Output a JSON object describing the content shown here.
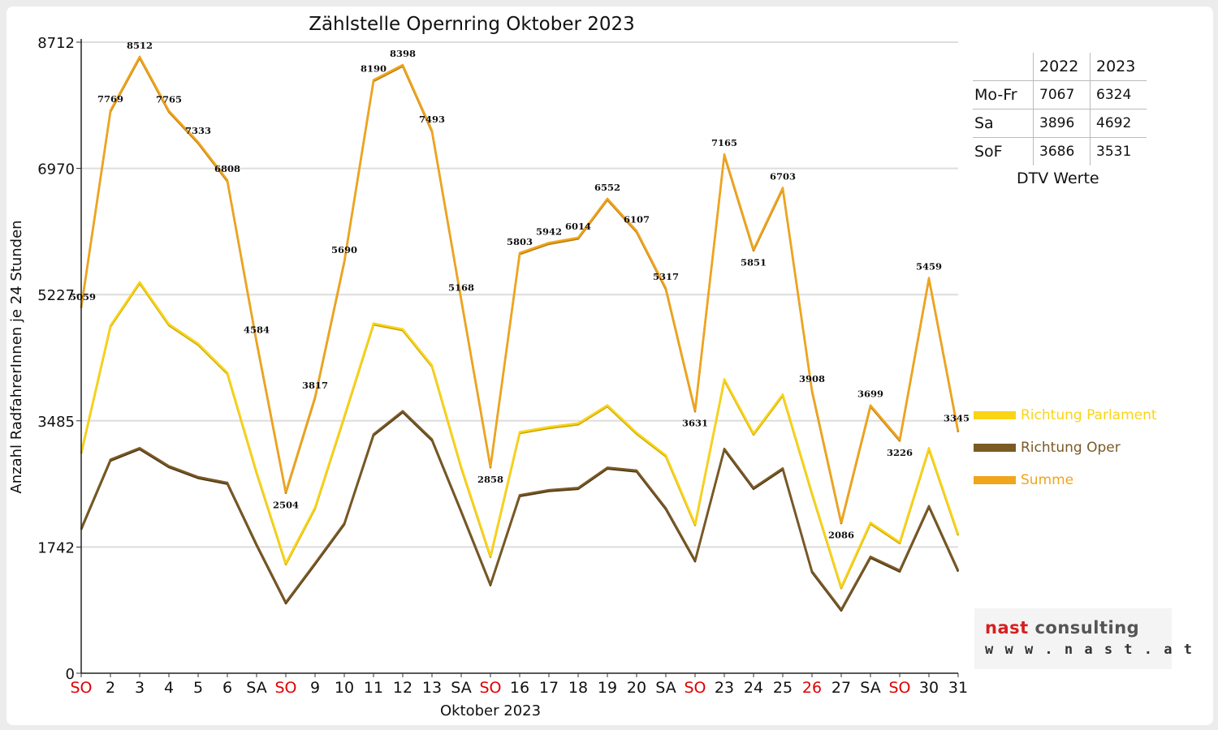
{
  "colors": {
    "parlament": "#fad417",
    "oper": "#7b5a24",
    "summe": "#f0a51c",
    "weekday_red": "#e00000",
    "grid": "#dddddd"
  },
  "table": {
    "headers": [
      "",
      "2022",
      "2023"
    ],
    "rows": [
      {
        "label": "Mo-Fr",
        "v2022": "7067",
        "v2023": "6324"
      },
      {
        "label": "Sa",
        "v2022": "3896",
        "v2023": "4692"
      },
      {
        "label": "SoF",
        "v2022": "3686",
        "v2023": "3531"
      }
    ],
    "caption": "DTV Werte"
  },
  "logo": {
    "name_part1": "nast",
    "name_part2": "consulting",
    "url": "w w w . n a s t . a t"
  },
  "chart_data": {
    "type": "line",
    "title": "Zählstelle Opernring Oktober 2023",
    "xlabel": "Oktober 2023",
    "ylabel": "Anzahl RadfahrerInnen je 24 Stunden",
    "ylim": [
      0,
      8712
    ],
    "yticks": [
      0,
      1742,
      3485,
      5227,
      6970,
      8712
    ],
    "grid": true,
    "legend_position": "right",
    "categories": [
      "SO",
      "2",
      "3",
      "4",
      "5",
      "6",
      "SA",
      "SO",
      "9",
      "10",
      "11",
      "12",
      "13",
      "SA",
      "SO",
      "16",
      "17",
      "18",
      "19",
      "20",
      "SA",
      "SO",
      "23",
      "24",
      "25",
      "26",
      "27",
      "SA",
      "SO",
      "30",
      "31"
    ],
    "red_categories": [
      0,
      7,
      14,
      21,
      25,
      28
    ],
    "series": [
      {
        "name": "Richtung Parlament",
        "values": [
          3050,
          4800,
          5400,
          4820,
          4550,
          4150,
          2780,
          1520,
          2290,
          3550,
          4830,
          4750,
          4250,
          2850,
          1620,
          3330,
          3400,
          3450,
          3700,
          3320,
          3010,
          2060,
          4060,
          3310,
          3850,
          2490,
          1190,
          2080,
          1810,
          3110,
          1920
        ]
      },
      {
        "name": "Richtung Oper",
        "values": [
          2000,
          2950,
          3110,
          2860,
          2710,
          2630,
          1780,
          980,
          1520,
          2070,
          3300,
          3620,
          3230,
          2240,
          1230,
          2460,
          2530,
          2560,
          2840,
          2800,
          2280,
          1560,
          3100,
          2560,
          2830,
          1410,
          880,
          1610,
          1420,
          2310,
          1420
        ]
      },
      {
        "name": "Summe",
        "values": [
          5059,
          7769,
          8512,
          7765,
          7333,
          6808,
          4584,
          2504,
          3817,
          5690,
          8190,
          8398,
          7493,
          5168,
          2858,
          5803,
          5942,
          6014,
          6552,
          6107,
          5317,
          3631,
          7165,
          5851,
          6703,
          3908,
          2086,
          3699,
          3226,
          5459,
          3345
        ]
      }
    ],
    "data_labels": [
      "5059",
      "7769",
      "8512",
      "7765",
      "7333",
      "6808",
      "4584",
      "2504",
      "3817",
      "5690",
      "8190",
      "8398",
      "7493",
      "5168",
      "2858",
      "5803",
      "5942",
      "6014",
      "6552",
      "6107",
      "5317",
      "3631",
      "7165",
      "5851",
      "6703",
      "3908",
      "2086",
      "3699",
      "3226",
      "5459",
      "3345"
    ]
  }
}
